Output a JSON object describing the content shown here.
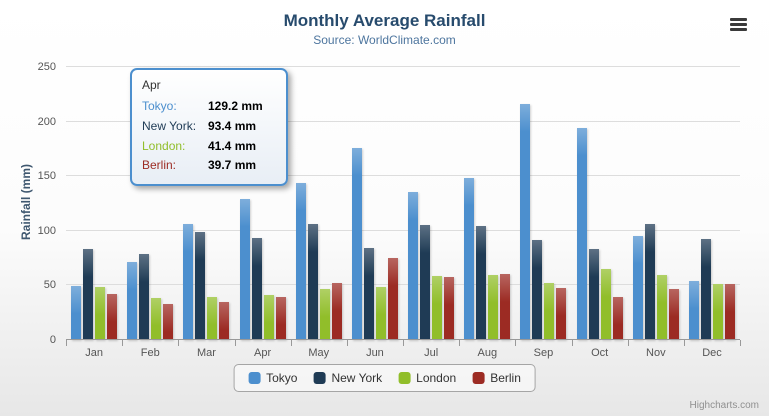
{
  "header": {
    "title": "Monthly Average Rainfall",
    "subtitle": "Source: WorldClimate.com"
  },
  "chart_data": {
    "type": "bar",
    "title": "Monthly Average Rainfall",
    "subtitle": "Source: WorldClimate.com",
    "xlabel": "",
    "ylabel": "Rainfall (mm)",
    "ylim": [
      0,
      250
    ],
    "yticks": [
      0,
      50,
      100,
      150,
      200,
      250
    ],
    "grid": true,
    "legend_position": "bottom",
    "categories": [
      "Jan",
      "Feb",
      "Mar",
      "Apr",
      "May",
      "Jun",
      "Jul",
      "Aug",
      "Sep",
      "Oct",
      "Nov",
      "Dec"
    ],
    "series": [
      {
        "name": "Tokyo",
        "color": "#4c8fce",
        "values": [
          49.9,
          71.5,
          106.4,
          129.2,
          144.0,
          176.0,
          135.6,
          148.5,
          216.4,
          194.1,
          95.6,
          54.4
        ]
      },
      {
        "name": "New York",
        "color": "#1f3b55",
        "values": [
          83.6,
          78.8,
          98.5,
          93.4,
          106.0,
          84.5,
          105.0,
          104.3,
          91.2,
          83.5,
          106.6,
          92.3
        ]
      },
      {
        "name": "London",
        "color": "#91be2a",
        "values": [
          48.9,
          38.8,
          39.3,
          41.4,
          47.0,
          48.3,
          59.0,
          59.6,
          52.4,
          65.2,
          59.3,
          51.2
        ]
      },
      {
        "name": "Berlin",
        "color": "#9c2b23",
        "values": [
          42.4,
          33.2,
          34.5,
          39.7,
          52.6,
          75.5,
          57.4,
          60.4,
          47.6,
          39.1,
          46.8,
          51.1
        ]
      }
    ]
  },
  "tooltip": {
    "category": "Apr",
    "border_color": "#4c8fce",
    "rows": [
      {
        "name": "Tokyo",
        "value": "129.2 mm",
        "color": "#4c8fce"
      },
      {
        "name": "New York",
        "value": "93.4 mm",
        "color": "#1f3b55"
      },
      {
        "name": "London",
        "value": "41.4 mm",
        "color": "#91be2a"
      },
      {
        "name": "Berlin",
        "value": "39.7 mm",
        "color": "#9c2b23"
      }
    ]
  },
  "credits": {
    "label": "Highcharts.com"
  }
}
